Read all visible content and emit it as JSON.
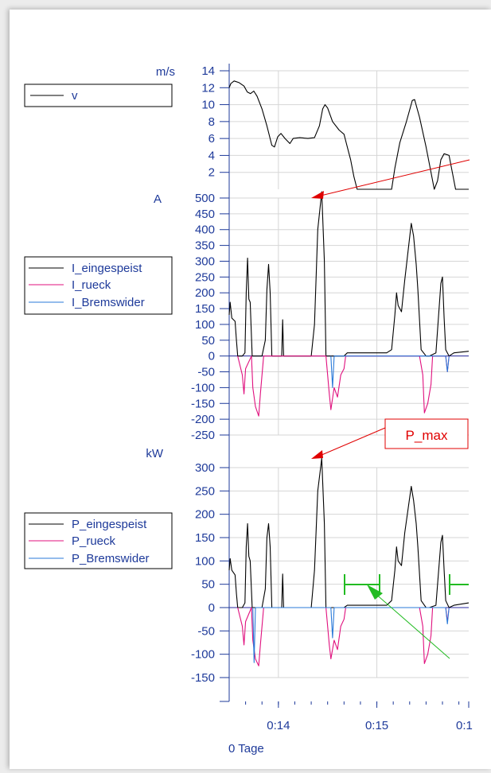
{
  "chart_data": [
    {
      "type": "line",
      "unit": "m/s",
      "ylim": [
        0,
        14
      ],
      "yticks": [
        "14",
        "12",
        "10",
        "8",
        "6",
        "4",
        "2"
      ],
      "grid": true,
      "legend": [
        "v"
      ],
      "series": [
        {
          "name": "v",
          "color": "#000000",
          "points": [
            [
              0,
              12.0
            ],
            [
              0.05,
              12.5
            ],
            [
              0.15,
              12.8
            ],
            [
              0.3,
              12.6
            ],
            [
              0.45,
              12.2
            ],
            [
              0.55,
              11.5
            ],
            [
              0.65,
              11.3
            ],
            [
              0.75,
              11.6
            ],
            [
              0.85,
              11.0
            ],
            [
              1.0,
              9.5
            ],
            [
              1.15,
              7.5
            ],
            [
              1.3,
              5.2
            ],
            [
              1.38,
              5.0
            ],
            [
              1.48,
              6.2
            ],
            [
              1.58,
              6.6
            ],
            [
              1.7,
              6.0
            ],
            [
              1.85,
              5.4
            ],
            [
              1.95,
              6.0
            ],
            [
              2.15,
              6.1
            ],
            [
              2.4,
              6.0
            ],
            [
              2.6,
              6.1
            ],
            [
              2.75,
              7.5
            ],
            [
              2.85,
              9.5
            ],
            [
              2.92,
              10.0
            ],
            [
              3.0,
              9.6
            ],
            [
              3.15,
              8.0
            ],
            [
              3.35,
              7.0
            ],
            [
              3.5,
              6.5
            ],
            [
              3.6,
              5.0
            ],
            [
              3.7,
              3.5
            ],
            [
              3.8,
              1.5
            ],
            [
              3.9,
              0.0
            ],
            [
              4.2,
              0.0
            ],
            [
              4.5,
              0.0
            ],
            [
              4.95,
              0.0
            ],
            [
              5.05,
              2.5
            ],
            [
              5.2,
              5.5
            ],
            [
              5.4,
              8.0
            ],
            [
              5.58,
              10.5
            ],
            [
              5.65,
              10.6
            ],
            [
              5.8,
              8.5
            ],
            [
              6.0,
              5.0
            ],
            [
              6.15,
              2.0
            ],
            [
              6.25,
              0.0
            ],
            [
              6.35,
              1.0
            ],
            [
              6.45,
              3.5
            ],
            [
              6.55,
              4.2
            ],
            [
              6.7,
              4.0
            ],
            [
              6.8,
              2.0
            ],
            [
              6.9,
              0.0
            ],
            [
              7.3,
              0.0
            ]
          ]
        }
      ]
    },
    {
      "type": "line",
      "unit": "A",
      "ylim": [
        -250,
        500
      ],
      "yticks": [
        "500",
        "450",
        "400",
        "350",
        "300",
        "250",
        "200",
        "150",
        "100",
        "50",
        "0",
        "-50",
        "-100",
        "-150",
        "-200",
        "-250"
      ],
      "grid": true,
      "legend": [
        "I_eingespeist",
        "I_rueck",
        "I_Bremswider"
      ],
      "series": [
        {
          "name": "I_eingespeist",
          "color": "#000000",
          "points": [
            [
              0,
              130
            ],
            [
              0.03,
              170
            ],
            [
              0.08,
              120
            ],
            [
              0.18,
              110
            ],
            [
              0.22,
              50
            ],
            [
              0.26,
              0
            ],
            [
              0.4,
              0
            ],
            [
              0.48,
              10
            ],
            [
              0.52,
              200
            ],
            [
              0.56,
              310
            ],
            [
              0.6,
              180
            ],
            [
              0.64,
              170
            ],
            [
              0.7,
              0
            ],
            [
              1.0,
              0
            ],
            [
              1.1,
              50
            ],
            [
              1.15,
              210
            ],
            [
              1.2,
              290
            ],
            [
              1.25,
              200
            ],
            [
              1.3,
              0
            ],
            [
              1.6,
              0
            ],
            [
              1.63,
              115
            ],
            [
              1.66,
              0
            ],
            [
              2.5,
              0
            ],
            [
              2.6,
              100
            ],
            [
              2.7,
              400
            ],
            [
              2.82,
              520
            ],
            [
              2.9,
              300
            ],
            [
              2.95,
              0
            ],
            [
              3.5,
              0
            ],
            [
              3.6,
              10
            ],
            [
              4.8,
              10
            ],
            [
              4.95,
              20
            ],
            [
              5.05,
              130
            ],
            [
              5.1,
              200
            ],
            [
              5.15,
              160
            ],
            [
              5.25,
              140
            ],
            [
              5.35,
              240
            ],
            [
              5.45,
              330
            ],
            [
              5.55,
              420
            ],
            [
              5.62,
              380
            ],
            [
              5.7,
              290
            ],
            [
              5.75,
              210
            ],
            [
              5.85,
              20
            ],
            [
              6.0,
              0
            ],
            [
              6.1,
              0
            ],
            [
              6.3,
              10
            ],
            [
              6.45,
              230
            ],
            [
              6.5,
              250
            ],
            [
              6.55,
              120
            ],
            [
              6.6,
              20
            ],
            [
              6.7,
              0
            ],
            [
              6.85,
              10
            ],
            [
              7.3,
              15
            ]
          ]
        },
        {
          "name": "I_rueck",
          "color": "#e0107e",
          "points": [
            [
              0.26,
              0
            ],
            [
              0.4,
              -60
            ],
            [
              0.45,
              -120
            ],
            [
              0.5,
              -40
            ],
            [
              0.68,
              0
            ],
            [
              0.72,
              -100
            ],
            [
              0.8,
              -160
            ],
            [
              0.9,
              -190
            ],
            [
              0.95,
              -120
            ],
            [
              1.05,
              0
            ],
            [
              2.95,
              0
            ],
            [
              3.05,
              -120
            ],
            [
              3.1,
              -170
            ],
            [
              3.2,
              -100
            ],
            [
              3.3,
              -130
            ],
            [
              3.4,
              -60
            ],
            [
              3.5,
              -40
            ],
            [
              3.55,
              0
            ],
            [
              5.8,
              0
            ],
            [
              5.9,
              -60
            ],
            [
              5.95,
              -180
            ],
            [
              6.05,
              -150
            ],
            [
              6.15,
              -90
            ],
            [
              6.2,
              0
            ],
            [
              6.6,
              0
            ],
            [
              6.65,
              -50
            ],
            [
              6.7,
              0
            ]
          ]
        },
        {
          "name": "I_Bremswider",
          "color": "#2a7ad9",
          "points": [
            [
              3.1,
              0
            ],
            [
              3.15,
              -100
            ],
            [
              3.2,
              0
            ],
            [
              6.6,
              0
            ],
            [
              6.65,
              -50
            ],
            [
              6.7,
              0
            ]
          ]
        }
      ]
    },
    {
      "type": "line",
      "unit": "kW",
      "ylim": [
        -150,
        300
      ],
      "yticks": [
        "300",
        "250",
        "200",
        "150",
        "100",
        "50",
        "0",
        "-50",
        "-100",
        "-150"
      ],
      "grid": true,
      "legend": [
        "P_eingespeist",
        "P_rueck",
        "P_Bremswider"
      ],
      "series": [
        {
          "name": "P_eingespeist",
          "color": "#000000",
          "points": [
            [
              0,
              80
            ],
            [
              0.03,
              105
            ],
            [
              0.08,
              80
            ],
            [
              0.18,
              70
            ],
            [
              0.22,
              30
            ],
            [
              0.26,
              0
            ],
            [
              0.4,
              0
            ],
            [
              0.48,
              10
            ],
            [
              0.52,
              130
            ],
            [
              0.56,
              180
            ],
            [
              0.6,
              110
            ],
            [
              0.64,
              100
            ],
            [
              0.7,
              0
            ],
            [
              1.0,
              0
            ],
            [
              1.1,
              40
            ],
            [
              1.15,
              150
            ],
            [
              1.2,
              180
            ],
            [
              1.25,
              130
            ],
            [
              1.3,
              0
            ],
            [
              1.6,
              0
            ],
            [
              1.63,
              72
            ],
            [
              1.66,
              0
            ],
            [
              2.5,
              0
            ],
            [
              2.6,
              80
            ],
            [
              2.7,
              250
            ],
            [
              2.82,
              320
            ],
            [
              2.9,
              180
            ],
            [
              2.95,
              0
            ],
            [
              3.5,
              0
            ],
            [
              3.6,
              5
            ],
            [
              4.8,
              5
            ],
            [
              4.95,
              15
            ],
            [
              5.05,
              80
            ],
            [
              5.1,
              130
            ],
            [
              5.15,
              100
            ],
            [
              5.25,
              90
            ],
            [
              5.35,
              160
            ],
            [
              5.45,
              210
            ],
            [
              5.55,
              260
            ],
            [
              5.62,
              230
            ],
            [
              5.7,
              180
            ],
            [
              5.75,
              130
            ],
            [
              5.85,
              15
            ],
            [
              6.0,
              0
            ],
            [
              6.1,
              0
            ],
            [
              6.3,
              5
            ],
            [
              6.45,
              140
            ],
            [
              6.5,
              155
            ],
            [
              6.55,
              80
            ],
            [
              6.6,
              15
            ],
            [
              6.7,
              0
            ],
            [
              6.85,
              5
            ],
            [
              7.3,
              10
            ]
          ]
        },
        {
          "name": "P_rueck",
          "color": "#e0107e",
          "points": [
            [
              0.26,
              0
            ],
            [
              0.4,
              -40
            ],
            [
              0.45,
              -80
            ],
            [
              0.5,
              -30
            ],
            [
              0.68,
              0
            ],
            [
              0.72,
              -70
            ],
            [
              0.8,
              -110
            ],
            [
              0.9,
              -125
            ],
            [
              0.95,
              -80
            ],
            [
              1.05,
              0
            ],
            [
              2.95,
              0
            ],
            [
              3.05,
              -80
            ],
            [
              3.1,
              -110
            ],
            [
              3.2,
              -70
            ],
            [
              3.3,
              -90
            ],
            [
              3.4,
              -40
            ],
            [
              3.5,
              -25
            ],
            [
              3.55,
              0
            ],
            [
              5.8,
              0
            ],
            [
              5.9,
              -40
            ],
            [
              5.95,
              -120
            ],
            [
              6.05,
              -100
            ],
            [
              6.15,
              -60
            ],
            [
              6.2,
              0
            ],
            [
              6.6,
              0
            ],
            [
              6.65,
              -30
            ],
            [
              6.7,
              0
            ]
          ]
        },
        {
          "name": "P_Bremswider",
          "color": "#2a7ad9",
          "points": [
            [
              0.72,
              0
            ],
            [
              0.76,
              -118
            ],
            [
              0.8,
              0
            ],
            [
              3.1,
              0
            ],
            [
              3.15,
              -65
            ],
            [
              3.2,
              0
            ],
            [
              6.6,
              0
            ],
            [
              6.65,
              -35
            ],
            [
              6.7,
              0
            ]
          ]
        }
      ]
    }
  ],
  "x_axis": {
    "ticks": [
      "0:14",
      "0:15",
      "0:1"
    ],
    "tick_positions": [
      1.5,
      4.5,
      7.5
    ],
    "range": [
      0,
      7.3
    ],
    "label": "0 Tage"
  },
  "annotations": {
    "p_max_label": "P_max",
    "red_color": "#e00000",
    "green_color": "#22bb22"
  }
}
